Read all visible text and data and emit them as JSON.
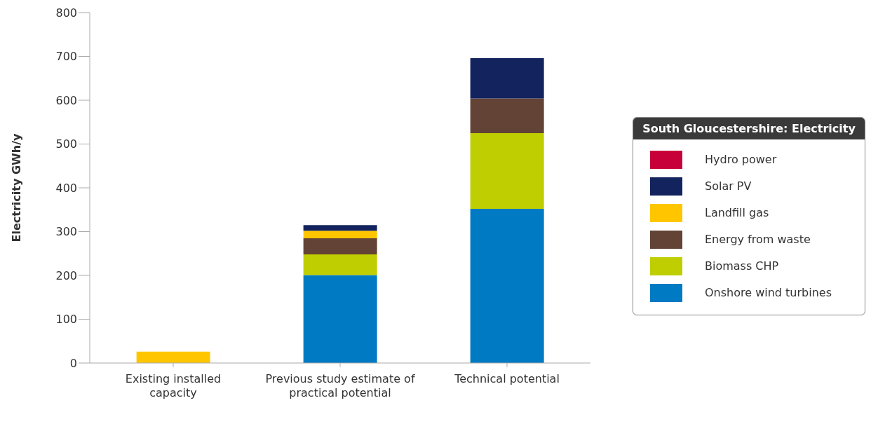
{
  "chart_data": {
    "type": "bar",
    "stacked": true,
    "ylabel": "Electricity GWh/y",
    "legend_title": "South Gloucestershire: Electricity",
    "legend": "right",
    "grid": false,
    "categories": [
      "Existing installed capacity",
      "Previous study estimate of practical potential",
      "Technical potential"
    ],
    "ylim": [
      0,
      800
    ],
    "yticks": [
      0,
      100,
      200,
      300,
      400,
      500,
      600,
      700,
      800
    ],
    "series": [
      {
        "name": "Onshore wind turbines",
        "color": "#007ac2",
        "values": [
          null,
          201,
          352
        ]
      },
      {
        "name": "Biomass CHP",
        "color": "#bfce00",
        "values": [
          0,
          47,
          173
        ]
      },
      {
        "name": "Energy from waste",
        "color": "#624335",
        "values": [
          0,
          37,
          79
        ]
      },
      {
        "name": "Landfill gas",
        "color": "#ffc600",
        "values": [
          26,
          17,
          0
        ]
      },
      {
        "name": "Solar PV",
        "color": "#13235e",
        "values": [
          0,
          13,
          92
        ]
      },
      {
        "name": "Hydro power",
        "color": "#c8003a",
        "values": [
          0,
          null,
          0
        ]
      }
    ]
  }
}
